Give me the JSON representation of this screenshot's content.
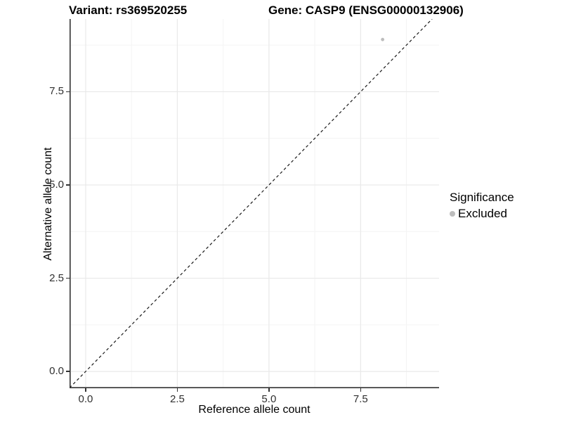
{
  "chart_data": {
    "type": "scatter",
    "titles": [
      "Variant: rs369520255",
      "Gene: CASP9 (ENSG00000132906)"
    ],
    "xlabel": "Reference allele count",
    "ylabel": "Alternative allele count",
    "x_ticks": [
      0.0,
      2.5,
      5.0,
      7.5
    ],
    "x_tick_labels": [
      "0.0",
      "2.5",
      "5.0",
      "7.5"
    ],
    "y_ticks": [
      0.0,
      2.5,
      5.0,
      7.5
    ],
    "y_tick_labels": [
      "0.0",
      "2.5",
      "5.0",
      "7.5"
    ],
    "x_minor_ticks": [
      1.25,
      3.75,
      6.25,
      8.75
    ],
    "y_minor_ticks": [
      1.25,
      3.75,
      6.25,
      8.75
    ],
    "xlim": [
      -0.44,
      9.64
    ],
    "ylim": [
      -0.45,
      9.45
    ],
    "grid": true,
    "series": [
      {
        "name": "Excluded",
        "color": "#bdbdbd",
        "points": [
          [
            8.1,
            8.9
          ]
        ]
      }
    ],
    "reference_line": {
      "type": "identity",
      "style": "dashed",
      "color": "#1a1a1a"
    },
    "legend": {
      "title": "Significance",
      "position": "right",
      "entries": [
        {
          "label": "Excluded",
          "color": "#bdbdbd"
        }
      ]
    },
    "colors": {
      "grid_major": "#e9e9e9",
      "grid_minor": "#f4f4f4",
      "axis_line": "#333333",
      "background": "#ffffff"
    }
  }
}
